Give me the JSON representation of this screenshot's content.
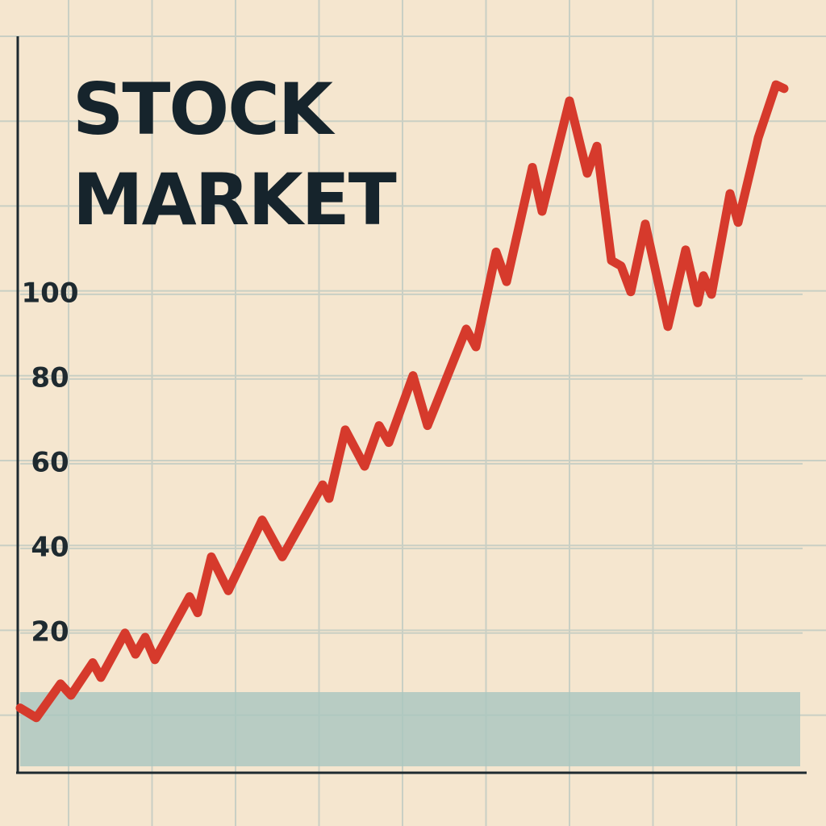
{
  "chart_data": {
    "type": "line",
    "title": "STOCK MARKET",
    "x": [
      0,
      2,
      5,
      6.3,
      9,
      10,
      13,
      14.3,
      15.5,
      16.7,
      21,
      22,
      23.7,
      25.8,
      30,
      32.5,
      37.5,
      38.3,
      40.3,
      42.7,
      44.5,
      45.7,
      48.7,
      50.5,
      55.3,
      56.5,
      59,
      60.3,
      63.5,
      64.7,
      68.1,
      70.3,
      71.5,
      73.3,
      74.5,
      75.7,
      77.5,
      80.3,
      82.5,
      84,
      84.7,
      85.7,
      88,
      89,
      91.5,
      93.7,
      94.7
    ],
    "series": [
      {
        "color": "#d63a2c",
        "values": [
          2.3,
          0,
          8,
          5.3,
          13,
          9.5,
          20,
          15,
          19,
          13.7,
          28.6,
          24.8,
          38,
          30,
          46.7,
          38,
          55,
          51.8,
          68,
          59.4,
          69,
          65,
          80.8,
          69,
          91.8,
          87.6,
          110,
          103,
          130,
          119.6,
          145.7,
          128.6,
          135,
          108,
          106.7,
          100.6,
          116.6,
          92.4,
          110.5,
          98,
          104.4,
          100,
          123.8,
          117,
          137,
          149.5,
          148.6
        ]
      }
    ],
    "xlim": [
      0,
      97
    ],
    "ylim": [
      -13,
      160
    ],
    "yticks": [
      20,
      40,
      60,
      80,
      100
    ],
    "grid": true
  }
}
